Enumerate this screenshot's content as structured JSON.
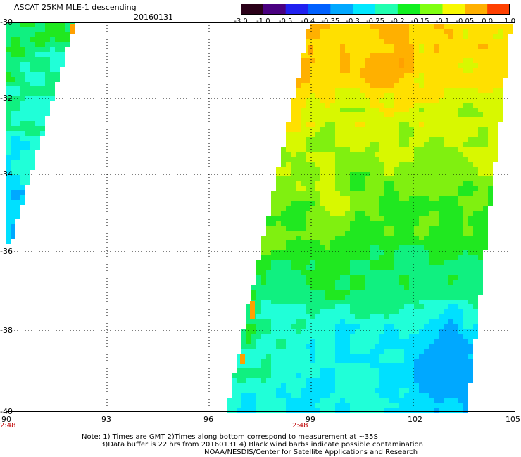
{
  "header": {
    "title": "ASCAT 25KM MLE-1 descending",
    "date": "20160131"
  },
  "colorbar": {
    "labels": [
      "-3.0",
      "-1.0",
      "-0.5",
      "-0.4",
      "-0.35",
      "-0.3",
      "-0.25",
      "-0.2",
      "-0.15",
      "-0.1",
      "-0.05",
      "0.0",
      "1.0"
    ],
    "colors": [
      "#2a0018",
      "#4a0080",
      "#2020f0",
      "#0060ff",
      "#00a8ff",
      "#00e8ff",
      "#20ffb0",
      "#10f020",
      "#80ff10",
      "#f8f800",
      "#ffb000",
      "#ff4000"
    ]
  },
  "axes": {
    "lon_ticks": [
      "90",
      "93",
      "96",
      "99",
      "102",
      "105"
    ],
    "lat_ticks": [
      "-30",
      "-32",
      "-34",
      "-36",
      "-38",
      "-40"
    ],
    "time_labels": [
      "2:48",
      "2:48"
    ]
  },
  "notes": [
    "Note: 1) Times are GMT 2)Times along bottom correspond to measurement at ~35S",
    "3)Data buffer is 22 hrs from 20160131 4) Black wind barbs indicate possible contamination",
    "NOAA/NESDIS/Center for Satellite Applications and Research"
  ]
}
